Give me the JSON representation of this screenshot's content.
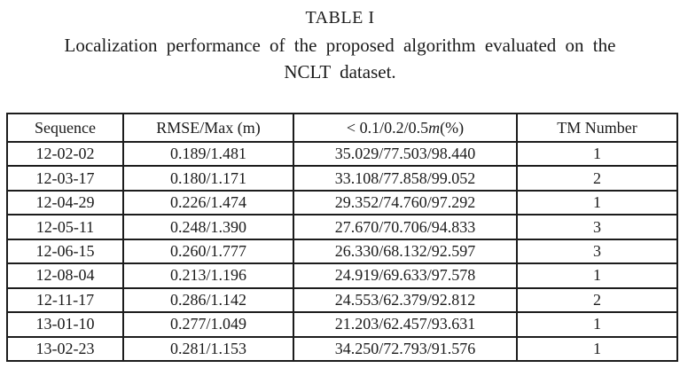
{
  "title": "TABLE I",
  "caption": {
    "line1": "Localization performance of the proposed algorithm evaluated on the",
    "line2": "NCLT dataset."
  },
  "table": {
    "col_sequence": "Sequence",
    "col_rmse": "RMSE/Max (m)",
    "col_threshold_prefix": "< 0.1/0.2/0.5",
    "col_threshold_italic": "m",
    "col_threshold_suffix": "(%)",
    "col_tm": "TM Number",
    "rows": [
      [
        "12-02-02",
        "0.189/1.481",
        "35.029/77.503/98.440",
        "1"
      ],
      [
        "12-03-17",
        "0.180/1.171",
        "33.108/77.858/99.052",
        "2"
      ],
      [
        "12-04-29",
        "0.226/1.474",
        "29.352/74.760/97.292",
        "1"
      ],
      [
        "12-05-11",
        "0.248/1.390",
        "27.670/70.706/94.833",
        "3"
      ],
      [
        "12-06-15",
        "0.260/1.777",
        "26.330/68.132/92.597",
        "3"
      ],
      [
        "12-08-04",
        "0.213/1.196",
        "24.919/69.633/97.578",
        "1"
      ],
      [
        "12-11-17",
        "0.286/1.142",
        "24.553/62.379/92.812",
        "2"
      ],
      [
        "13-01-10",
        "0.277/1.049",
        "21.203/62.457/93.631",
        "1"
      ],
      [
        "13-02-23",
        "0.281/1.153",
        "34.250/72.793/91.576",
        "1"
      ]
    ]
  }
}
